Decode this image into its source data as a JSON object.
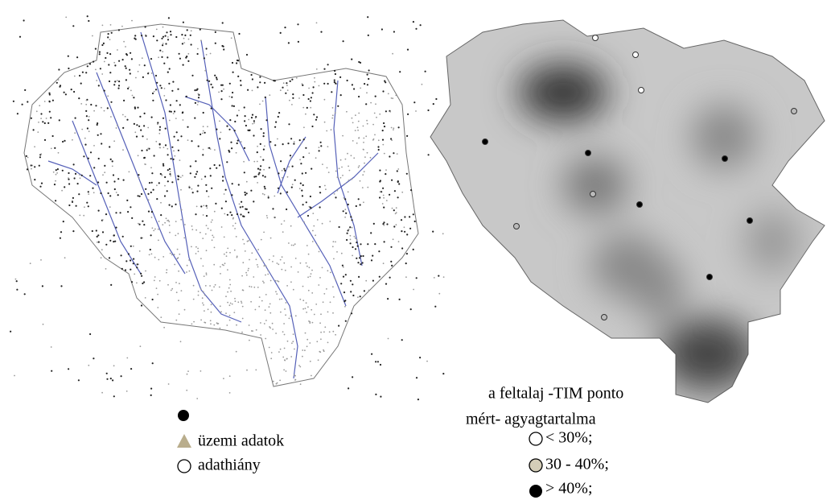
{
  "left_legend": {
    "items": [
      "üzemi adatok",
      "adathiány"
    ]
  },
  "right_legend": {
    "title_line1": "a feltalaj -TIM ponto",
    "title_line2": "mért- agyagtartalma",
    "items": [
      "< 30%;",
      "30 - 40%;",
      "> 40%;"
    ]
  }
}
